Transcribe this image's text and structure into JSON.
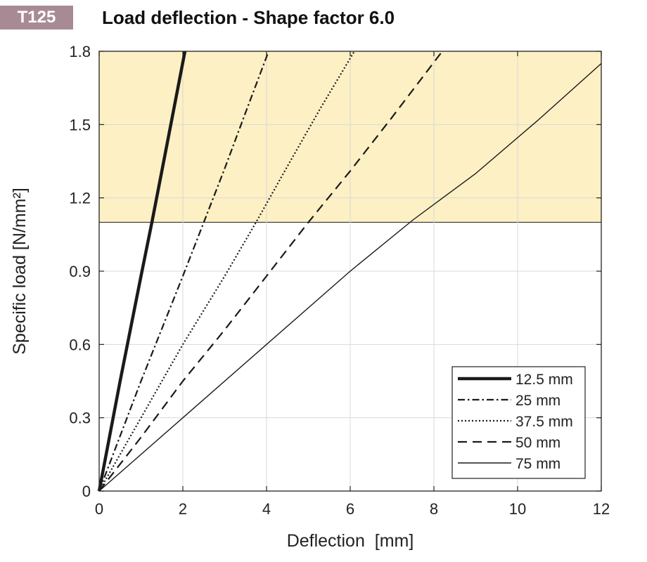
{
  "badge": "T125",
  "chart_data": {
    "type": "line",
    "title": "Load deflection - Shape factor 6.0",
    "xlabel": "Deflection  [mm]",
    "ylabel": "Specific load [N/mm²]",
    "xlim": [
      0,
      12
    ],
    "ylim": [
      0,
      1.8
    ],
    "xticks": [
      0,
      2,
      4,
      6,
      8,
      10,
      12
    ],
    "xtick_labels": [
      "0",
      "2",
      "4",
      "6",
      "8",
      "10",
      "12"
    ],
    "yticks": [
      0,
      0.3,
      0.6,
      0.9,
      1.2,
      1.5,
      1.8
    ],
    "ytick_labels": [
      "0",
      "0.3",
      "0.6",
      "0.9",
      "1.2",
      "1.5",
      "1.8"
    ],
    "grid": true,
    "legend_position": "bottom-right",
    "shaded_band": {
      "y_from": 1.1,
      "y_to": 1.8,
      "color": "#fcf0c4"
    },
    "series": [
      {
        "name": "12.5 mm",
        "style": "solid-thick",
        "x": [
          0,
          0.5,
          1.0,
          1.26,
          1.6,
          2.05
        ],
        "y": [
          0,
          0.45,
          0.88,
          1.1,
          1.4,
          1.8
        ]
      },
      {
        "name": "25 mm",
        "style": "dash-dot",
        "x": [
          0,
          1.0,
          2.0,
          2.5,
          3.0,
          3.5,
          4.05
        ],
        "y": [
          0,
          0.45,
          0.88,
          1.1,
          1.32,
          1.55,
          1.8
        ]
      },
      {
        "name": "37.5 mm",
        "style": "dotted",
        "x": [
          0,
          1.0,
          2.0,
          3.0,
          3.75,
          4.5,
          5.3,
          6.1
        ],
        "y": [
          0,
          0.3,
          0.6,
          0.88,
          1.1,
          1.33,
          1.57,
          1.8
        ]
      },
      {
        "name": "50 mm",
        "style": "dashed",
        "x": [
          0,
          1.0,
          2.0,
          3.0,
          4.0,
          5.0,
          6.0,
          7.0,
          8.2
        ],
        "y": [
          0,
          0.22,
          0.45,
          0.66,
          0.88,
          1.1,
          1.31,
          1.53,
          1.8
        ]
      },
      {
        "name": "75 mm",
        "style": "solid-thin",
        "x": [
          0,
          2.0,
          4.0,
          6.0,
          7.5,
          9.0,
          10.5,
          12.0
        ],
        "y": [
          0,
          0.3,
          0.6,
          0.9,
          1.11,
          1.3,
          1.52,
          1.75
        ]
      }
    ]
  }
}
